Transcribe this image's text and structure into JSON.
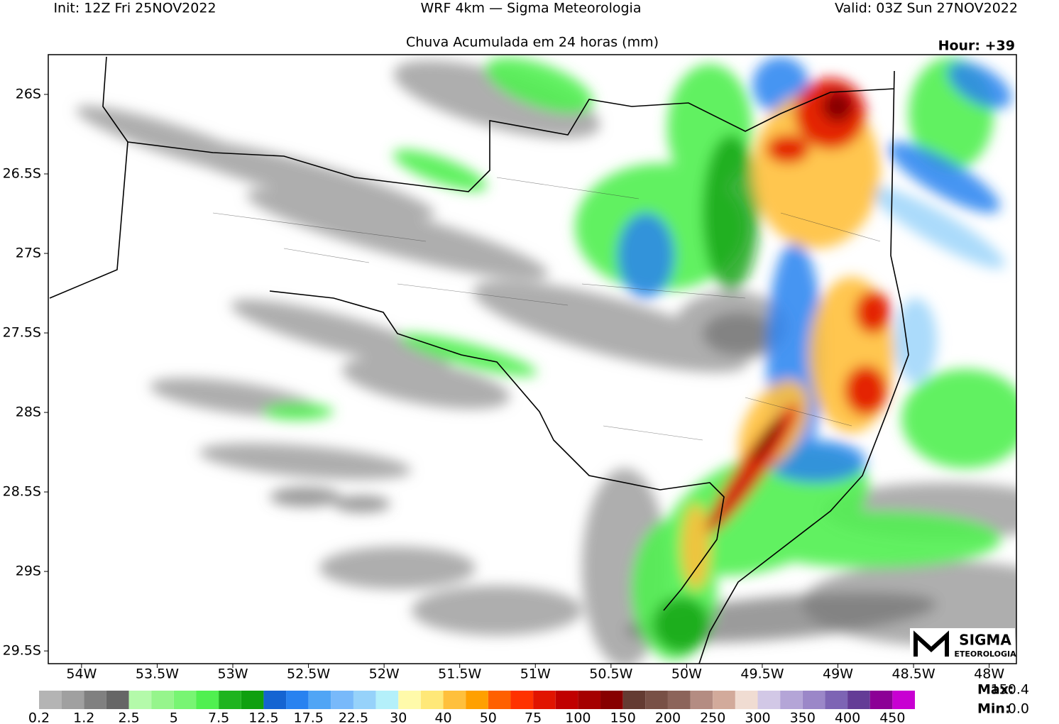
{
  "header": {
    "init": "Init: 12Z Fri 25NOV2022",
    "model": "WRF 4km — Sigma Meteorologia",
    "valid": "Valid: 03Z Sun 27NOV2022",
    "title": "Chuva Acumulada em 24 horas (mm)",
    "hour": "Hour: +39"
  },
  "map": {
    "lon_range": [
      -54.22,
      -47.82
    ],
    "lat_range": [
      -25.75,
      -29.58
    ],
    "lon_ticks": [
      {
        "value": -54,
        "label": "54W"
      },
      {
        "value": -53.5,
        "label": "53.5W"
      },
      {
        "value": -53,
        "label": "53W"
      },
      {
        "value": -52.5,
        "label": "52.5W"
      },
      {
        "value": -52,
        "label": "52W"
      },
      {
        "value": -51.5,
        "label": "51.5W"
      },
      {
        "value": -51,
        "label": "51W"
      },
      {
        "value": -50.5,
        "label": "50.5W"
      },
      {
        "value": -50,
        "label": "50W"
      },
      {
        "value": -49.5,
        "label": "49.5W"
      },
      {
        "value": -49,
        "label": "49W"
      },
      {
        "value": -48.5,
        "label": "48.5W"
      },
      {
        "value": -48,
        "label": "48W"
      }
    ],
    "lat_ticks": [
      {
        "value": -26,
        "label": "26S"
      },
      {
        "value": -26.5,
        "label": "26.5S"
      },
      {
        "value": -27,
        "label": "27S"
      },
      {
        "value": -27.5,
        "label": "27.5S"
      },
      {
        "value": -28,
        "label": "28S"
      },
      {
        "value": -28.5,
        "label": "28.5S"
      },
      {
        "value": -29,
        "label": "29S"
      },
      {
        "value": -29.5,
        "label": "29.5S"
      }
    ]
  },
  "colorbar": {
    "labels": [
      "0.2",
      "1.2",
      "2.5",
      "5",
      "7.5",
      "12.5",
      "17.5",
      "22.5",
      "30",
      "40",
      "50",
      "75",
      "100",
      "150",
      "200",
      "250",
      "300",
      "350",
      "400",
      "450"
    ],
    "colors": [
      "#b4b4b4",
      "#a0a0a0",
      "#808080",
      "#666666",
      "#b4faaa",
      "#96f58c",
      "#78f573",
      "#50f050",
      "#1eb41e",
      "#0fa00f",
      "#1464d2",
      "#2882f0",
      "#50a5f5",
      "#78b9fa",
      "#96d2fa",
      "#b4f0fa",
      "#fffaaa",
      "#ffe878",
      "#ffc03c",
      "#ffa000",
      "#ff6000",
      "#ff3200",
      "#e11400",
      "#c00000",
      "#a50000",
      "#870000",
      "#643b32",
      "#785046",
      "#8c645a",
      "#b48c82",
      "#d2aa9b",
      "#f0dcd2",
      "#d2c8e6",
      "#b4a5d7",
      "#9b87c8",
      "#7d64b4",
      "#643c96",
      "#8c0096",
      "#c800d2"
    ]
  },
  "stats": {
    "max_label": "Max:",
    "max": "150.4",
    "min_label": "Min:",
    "min": "0.0"
  },
  "logo": {
    "name": "SIGMA",
    "sub": "ETEOROLOGIA"
  }
}
